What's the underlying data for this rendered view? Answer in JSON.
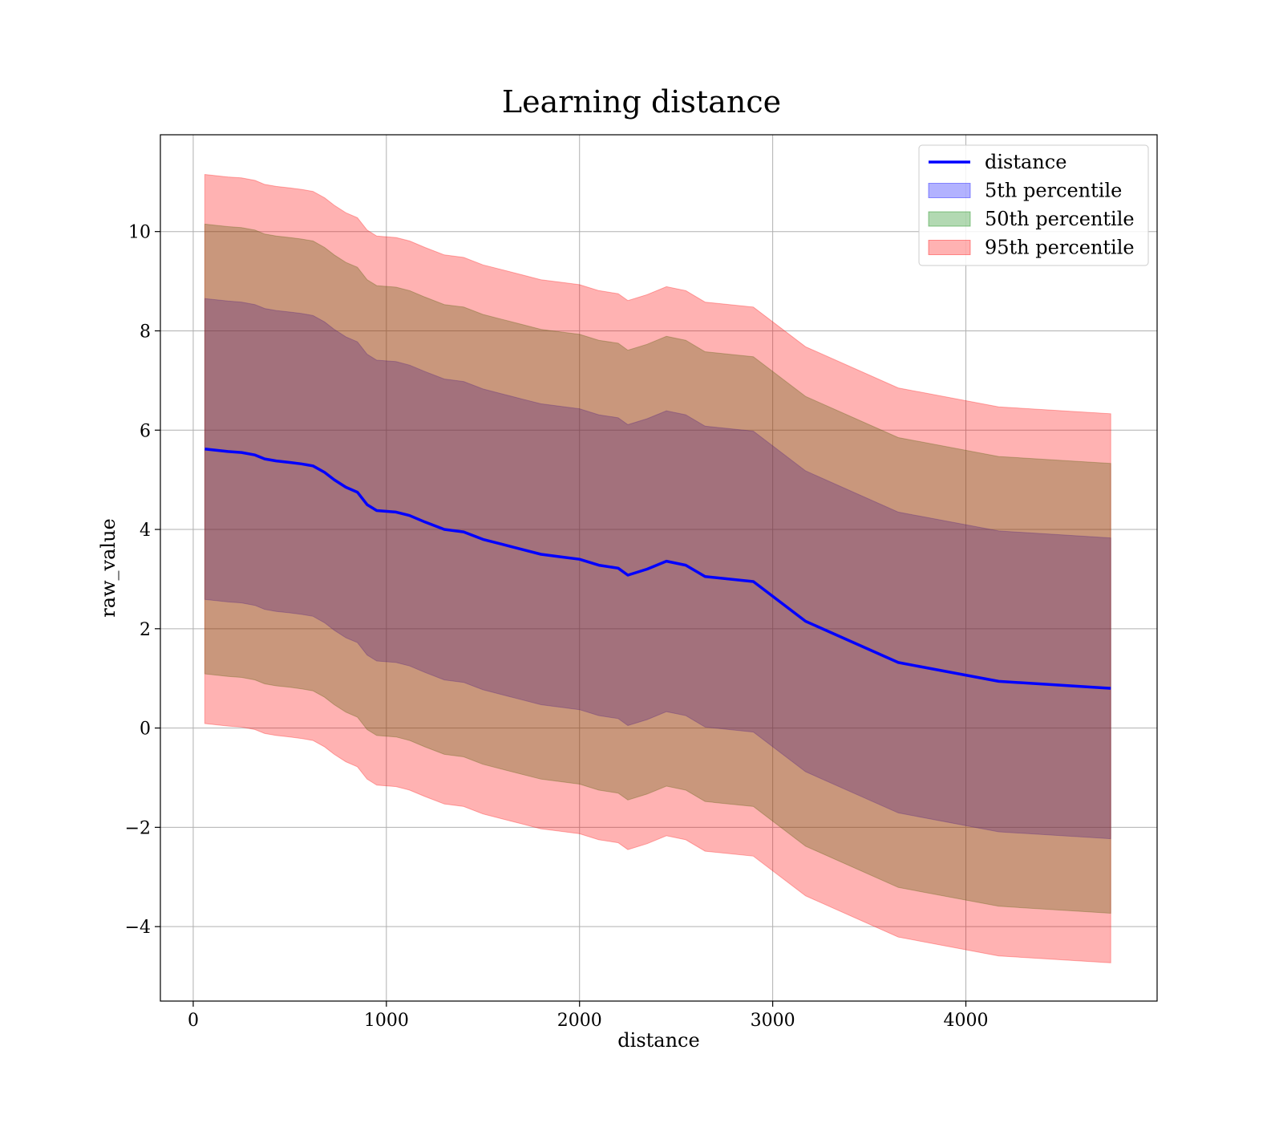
{
  "chart_data": {
    "type": "area",
    "title": "Learning distance",
    "xlabel": "distance",
    "ylabel": "raw_value",
    "xlim": [
      -170,
      4990
    ],
    "ylim": [
      -5.5,
      11.95
    ],
    "xticks": [
      0,
      1000,
      2000,
      3000,
      4000
    ],
    "yticks": [
      -4,
      -2,
      0,
      2,
      4,
      6,
      8,
      10
    ],
    "ytick_labels": [
      "−4",
      "−2",
      "0",
      "2",
      "4",
      "6",
      "8",
      "10"
    ],
    "grid": true,
    "legend_position": "top-right",
    "x": [
      60,
      180,
      250,
      320,
      370,
      430,
      500,
      560,
      620,
      680,
      730,
      790,
      850,
      900,
      950,
      1050,
      1120,
      1200,
      1300,
      1400,
      1500,
      1600,
      1700,
      1800,
      1900,
      2000,
      2100,
      2200,
      2250,
      2350,
      2450,
      2550,
      2650,
      2900,
      3170,
      3650,
      4170,
      4750
    ],
    "series": [
      {
        "name": "distance",
        "kind": "line",
        "color": "#0000ff",
        "values": [
          5.62,
          5.57,
          5.55,
          5.5,
          5.42,
          5.38,
          5.35,
          5.32,
          5.28,
          5.15,
          5.0,
          4.85,
          4.75,
          4.5,
          4.38,
          4.35,
          4.28,
          4.15,
          4.0,
          3.95,
          3.8,
          3.7,
          3.6,
          3.5,
          3.45,
          3.4,
          3.28,
          3.22,
          3.08,
          3.2,
          3.36,
          3.28,
          3.05,
          2.95,
          2.15,
          1.32,
          0.94,
          0.8
        ]
      },
      {
        "name": "5th percentile",
        "kind": "band",
        "color": "#0000ff",
        "opacity": 0.3,
        "offset": 3.03
      },
      {
        "name": "50th percentile",
        "kind": "band",
        "color": "#008000",
        "opacity": 0.3,
        "offset": 4.53
      },
      {
        "name": "95th percentile",
        "kind": "band",
        "color": "#ff0000",
        "opacity": 0.3,
        "offset": 5.53
      }
    ]
  }
}
